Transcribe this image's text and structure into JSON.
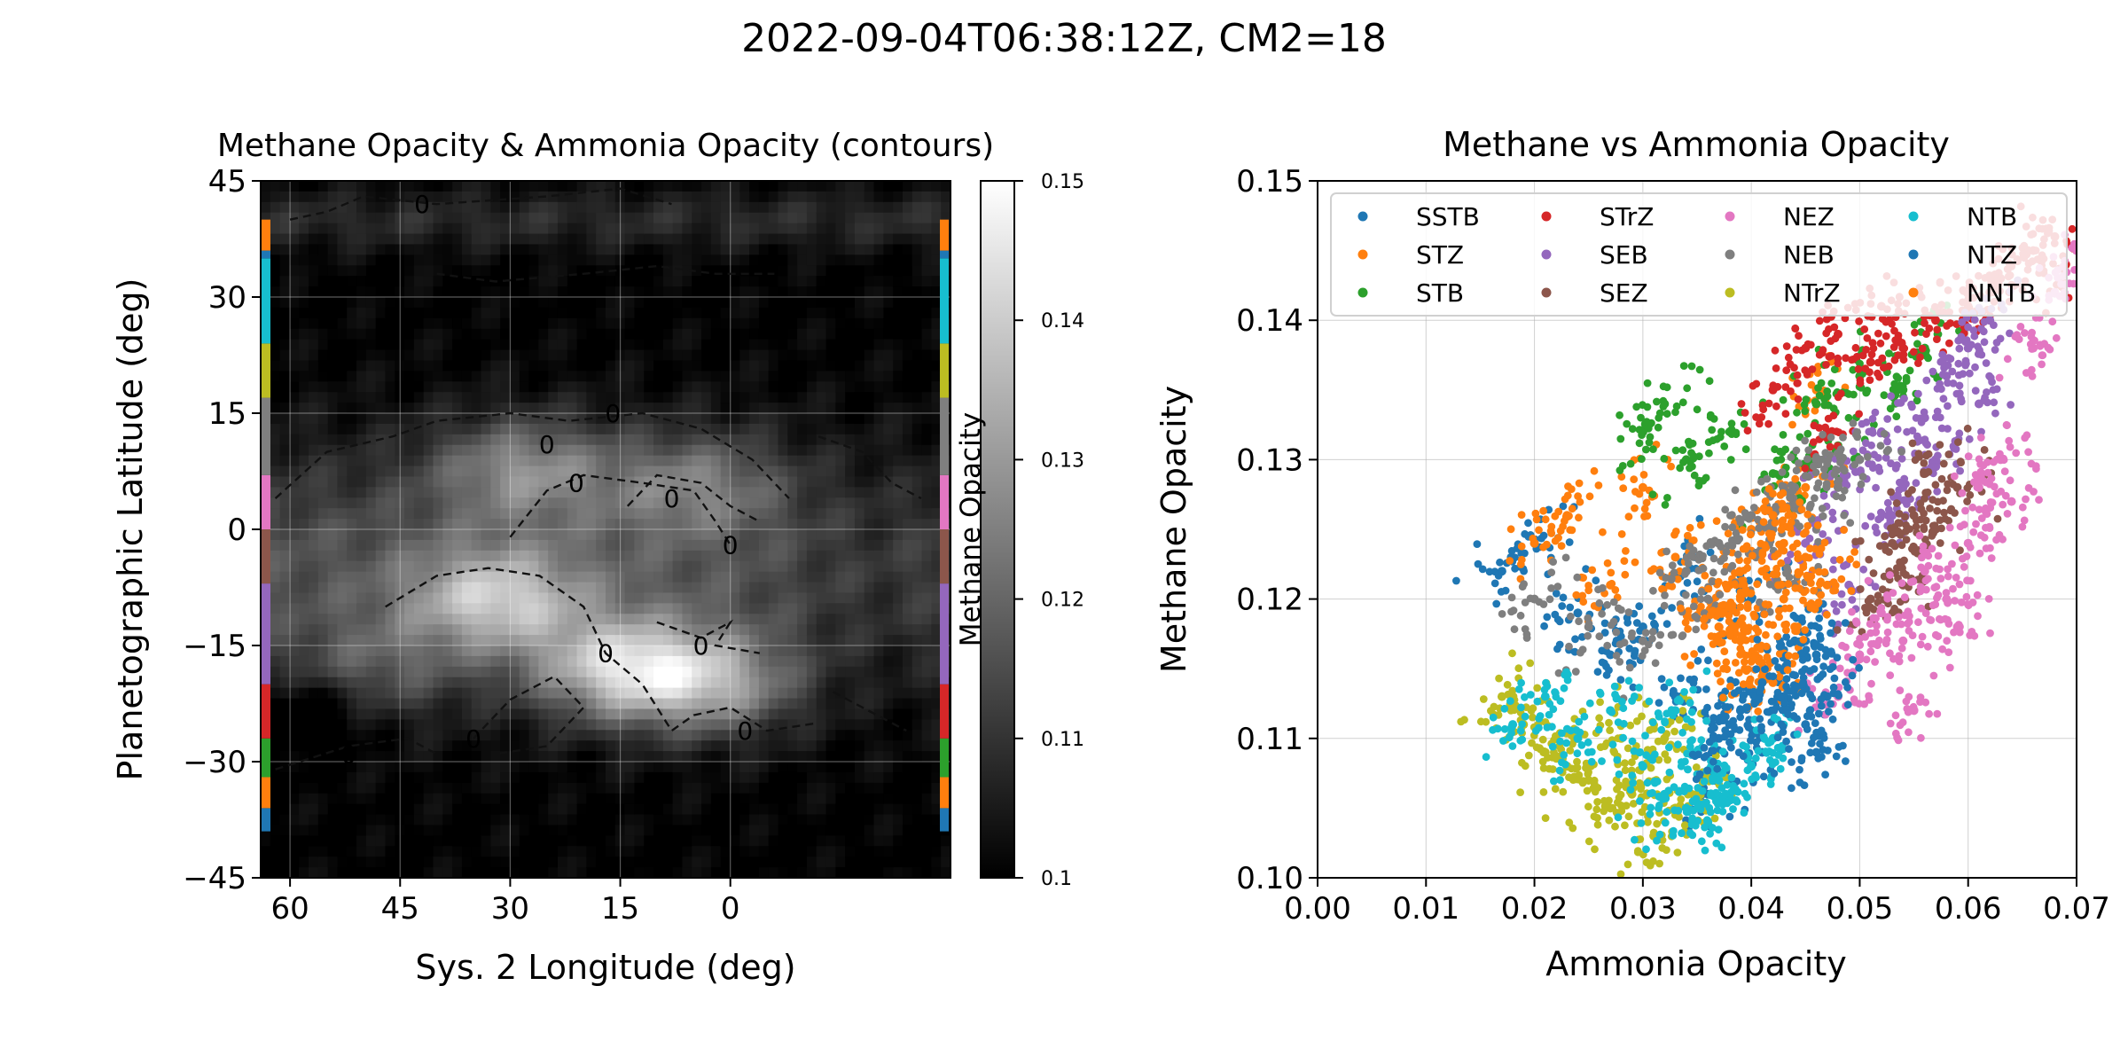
{
  "figure": {
    "suptitle": "2022-09-04T06:38:12Z, CM2=18"
  },
  "chart_data": [
    {
      "type": "heatmap",
      "title": "Methane Opacity & Ammonia Opacity (contours)",
      "xlabel": "Sys. 2 Longitude (deg)",
      "ylabel": "Planetographic Latitude (deg)",
      "xlim": [
        64,
        -30
      ],
      "ylim": [
        -45,
        45
      ],
      "x_ticks": [
        "60",
        "45",
        "30",
        "15",
        "0"
      ],
      "x_tick_values": [
        60,
        45,
        30,
        15,
        0
      ],
      "y_ticks": [
        "45",
        "30",
        "15",
        "0",
        "−15",
        "−30",
        "−45"
      ],
      "y_tick_values": [
        45,
        30,
        15,
        0,
        -15,
        -30,
        -45
      ],
      "colormap": "gray",
      "colorbar": {
        "label": "Methane Opacity",
        "min": 0.1,
        "max": 0.15,
        "ticks": [
          "0.15",
          "0.14",
          "0.13",
          "0.12",
          "0.11",
          "0.1"
        ],
        "tick_values": [
          0.15,
          0.14,
          0.13,
          0.12,
          0.11,
          0.1
        ]
      },
      "contour_label": "0",
      "contour_style": "dashed",
      "grid": true,
      "bright_regions": [
        {
          "lon": 28,
          "lat": 8,
          "peak": 0.132
        },
        {
          "lon": 5,
          "lat": 6,
          "peak": 0.128
        },
        {
          "lon": 32,
          "lat": -9,
          "peak": 0.138
        },
        {
          "lon": 15,
          "lat": -18,
          "peak": 0.142
        },
        {
          "lon": 3,
          "lat": -20,
          "peak": 0.137
        },
        {
          "lon": 48,
          "lat": -18,
          "peak": 0.122
        }
      ],
      "latitude_band_edges": [
        {
          "name": "SSTB",
          "color": "#1f77b4",
          "lat_min": -39,
          "lat_max": -36
        },
        {
          "name": "STZ",
          "color": "#ff7f0e",
          "lat_min": -36,
          "lat_max": -32
        },
        {
          "name": "STB",
          "color": "#2ca02c",
          "lat_min": -32,
          "lat_max": -27
        },
        {
          "name": "STrZ",
          "color": "#d62728",
          "lat_min": -27,
          "lat_max": -20
        },
        {
          "name": "SEB",
          "color": "#9467bd",
          "lat_min": -20,
          "lat_max": -7
        },
        {
          "name": "SEZ",
          "color": "#8c564b",
          "lat_min": -7,
          "lat_max": 0
        },
        {
          "name": "NEZ",
          "color": "#e377c2",
          "lat_min": 0,
          "lat_max": 7
        },
        {
          "name": "NEB",
          "color": "#7f7f7f",
          "lat_min": 7,
          "lat_max": 17
        },
        {
          "name": "NTrZ",
          "color": "#bcbd22",
          "lat_min": 17,
          "lat_max": 24
        },
        {
          "name": "NTB",
          "color": "#17becf",
          "lat_min": 24,
          "lat_max": 35
        },
        {
          "name": "NTZ",
          "color": "#1f77b4",
          "lat_min": 35,
          "lat_max": 36
        },
        {
          "name": "NNTB",
          "color": "#ff7f0e",
          "lat_min": 36,
          "lat_max": 40
        }
      ]
    },
    {
      "type": "scatter",
      "title": "Methane vs Ammonia Opacity",
      "xlabel": "Ammonia Opacity",
      "ylabel": "Methane Opacity",
      "xlim": [
        0.0,
        0.07
      ],
      "ylim": [
        0.1,
        0.15
      ],
      "x_ticks": [
        "0.00",
        "0.01",
        "0.02",
        "0.03",
        "0.04",
        "0.05",
        "0.06",
        "0.07"
      ],
      "x_tick_values": [
        0.0,
        0.01,
        0.02,
        0.03,
        0.04,
        0.05,
        0.06,
        0.07
      ],
      "y_ticks": [
        "0.10",
        "0.11",
        "0.12",
        "0.13",
        "0.14",
        "0.15"
      ],
      "y_tick_values": [
        0.1,
        0.11,
        0.12,
        0.13,
        0.14,
        0.15
      ],
      "grid": true,
      "legend_position": "top",
      "legend_columns": 4,
      "series": [
        {
          "name": "SSTB",
          "color": "#1f77b4",
          "x": [
            0.017,
            0.02,
            0.024,
            0.027,
            0.03,
            0.034,
            0.038,
            0.041,
            0.043,
            0.045,
            0.046,
            0.04,
            0.036,
            0.033
          ],
          "y": [
            0.122,
            0.124,
            0.119,
            0.116,
            0.118,
            0.122,
            0.111,
            0.109,
            0.113,
            0.117,
            0.109,
            0.12,
            0.106,
            0.113
          ]
        },
        {
          "name": "STZ",
          "color": "#ff7f0e",
          "x": [
            0.02,
            0.023,
            0.027,
            0.03,
            0.033,
            0.036,
            0.039,
            0.041,
            0.043,
            0.045,
            0.038,
            0.042,
            0.046,
            0.04
          ],
          "y": [
            0.124,
            0.126,
            0.121,
            0.128,
            0.123,
            0.119,
            0.117,
            0.115,
            0.12,
            0.128,
            0.121,
            0.114,
            0.135,
            0.125
          ]
        },
        {
          "name": "STB",
          "color": "#2ca02c",
          "x": [
            0.03,
            0.032,
            0.034,
            0.038,
            0.042,
            0.046,
            0.05,
            0.054,
            0.056,
            0.048
          ],
          "y": [
            0.132,
            0.134,
            0.13,
            0.132,
            0.129,
            0.134,
            0.136,
            0.135,
            0.138,
            0.131
          ]
        },
        {
          "name": "STrZ",
          "color": "#d62728",
          "x": [
            0.042,
            0.045,
            0.048,
            0.051,
            0.054,
            0.057,
            0.06,
            0.063,
            0.066,
            0.068,
            0.069,
            0.047,
            0.052,
            0.062
          ],
          "y": [
            0.135,
            0.138,
            0.139,
            0.137,
            0.138,
            0.14,
            0.141,
            0.143,
            0.145,
            0.146,
            0.144,
            0.132,
            0.141,
            0.142
          ]
        },
        {
          "name": "SEB",
          "color": "#9467bd",
          "x": [
            0.045,
            0.048,
            0.05,
            0.052,
            0.054,
            0.056,
            0.058,
            0.06,
            0.062,
            0.057,
            0.053,
            0.049,
            0.061
          ],
          "y": [
            0.124,
            0.128,
            0.13,
            0.132,
            0.128,
            0.133,
            0.136,
            0.138,
            0.14,
            0.13,
            0.126,
            0.121,
            0.134
          ]
        },
        {
          "name": "SEZ",
          "color": "#8c564b",
          "x": [
            0.051,
            0.053,
            0.055,
            0.057,
            0.059,
            0.054,
            0.056
          ],
          "y": [
            0.12,
            0.124,
            0.126,
            0.125,
            0.128,
            0.121,
            0.129
          ]
        },
        {
          "name": "NEZ",
          "color": "#e377c2",
          "x": [
            0.048,
            0.05,
            0.052,
            0.054,
            0.056,
            0.058,
            0.06,
            0.061,
            0.063,
            0.064,
            0.066,
            0.068,
            0.07,
            0.055,
            0.059
          ],
          "y": [
            0.113,
            0.116,
            0.119,
            0.117,
            0.122,
            0.12,
            0.124,
            0.128,
            0.13,
            0.127,
            0.138,
            0.142,
            0.145,
            0.112,
            0.118
          ]
        },
        {
          "name": "NEB",
          "color": "#7f7f7f",
          "x": [
            0.02,
            0.025,
            0.03,
            0.034,
            0.037,
            0.04,
            0.042,
            0.044,
            0.046,
            0.048,
            0.05,
            0.036,
            0.043
          ],
          "y": [
            0.12,
            0.118,
            0.117,
            0.122,
            0.124,
            0.126,
            0.125,
            0.128,
            0.13,
            0.128,
            0.13,
            0.12,
            0.121
          ]
        },
        {
          "name": "NTrZ",
          "color": "#bcbd22",
          "x": [
            0.017,
            0.019,
            0.021,
            0.023,
            0.025,
            0.027,
            0.029,
            0.031,
            0.033,
            0.035,
            0.028,
            0.03,
            0.032,
            0.024
          ],
          "y": [
            0.113,
            0.111,
            0.109,
            0.108,
            0.107,
            0.105,
            0.106,
            0.103,
            0.105,
            0.106,
            0.11,
            0.108,
            0.11,
            0.11
          ]
        },
        {
          "name": "NTB",
          "color": "#17becf",
          "x": [
            0.018,
            0.021,
            0.024,
            0.027,
            0.03,
            0.032,
            0.034,
            0.036,
            0.038,
            0.04,
            0.042,
            0.035,
            0.037,
            0.033
          ],
          "y": [
            0.111,
            0.113,
            0.11,
            0.112,
            0.108,
            0.106,
            0.105,
            0.104,
            0.106,
            0.108,
            0.11,
            0.109,
            0.107,
            0.112
          ]
        },
        {
          "name": "NTZ",
          "color": "#1f77b4",
          "x": [
            0.037,
            0.039,
            0.041,
            0.043,
            0.044,
            0.045,
            0.046,
            0.047
          ],
          "y": [
            0.11,
            0.112,
            0.114,
            0.113,
            0.117,
            0.111,
            0.116,
            0.113
          ]
        },
        {
          "name": "NNTB",
          "color": "#ff7f0e",
          "x": [
            0.037,
            0.039,
            0.041,
            0.043,
            0.045,
            0.047,
            0.04,
            0.044,
            0.042
          ],
          "y": [
            0.118,
            0.12,
            0.122,
            0.124,
            0.123,
            0.121,
            0.116,
            0.118,
            0.126
          ]
        }
      ]
    }
  ]
}
